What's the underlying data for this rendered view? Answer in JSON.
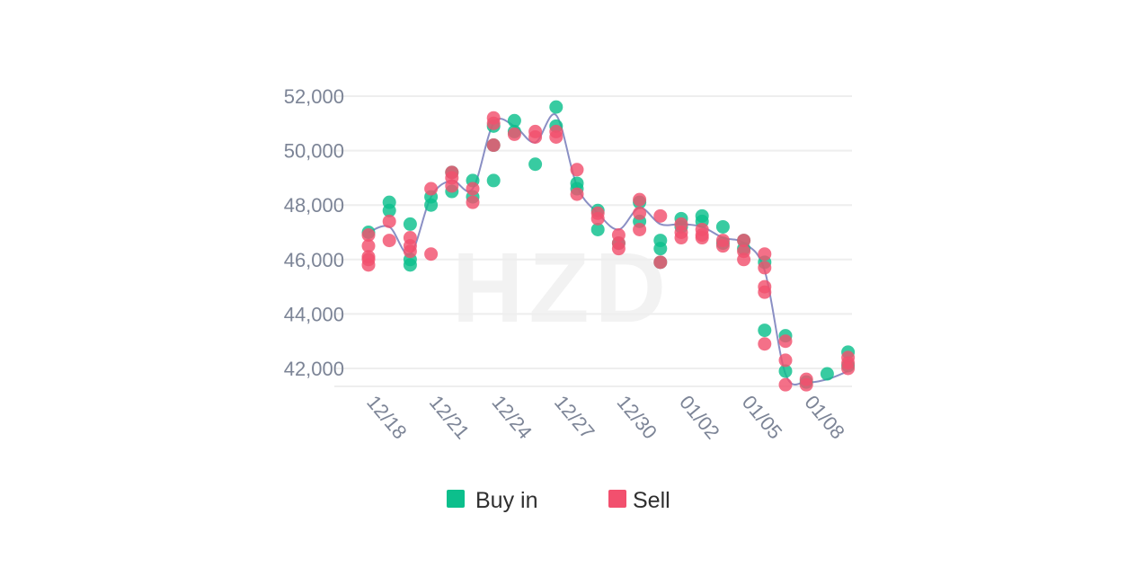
{
  "chart_data": {
    "type": "scatter",
    "title": "",
    "xlabel": "",
    "ylabel": "",
    "x_ticks": [
      "12/18",
      "12/21",
      "12/24",
      "12/27",
      "12/30",
      "01/02",
      "01/05",
      "01/08"
    ],
    "y_ticks": [
      "42,000",
      "44,000",
      "46,000",
      "48,000",
      "50,000",
      "52,000"
    ],
    "y_tick_values": [
      42000,
      44000,
      46000,
      48000,
      50000,
      52000
    ],
    "ylim": [
      41000,
      52000
    ],
    "xlim": [
      "12/18",
      "01/09"
    ],
    "grid": "horizontal",
    "legend_position": "bottom",
    "watermark": "HZD",
    "colors": {
      "buy": "#0cbf8c",
      "sell": "#f2506e",
      "trend": "#8a8fc4",
      "grid": "#eeeeee"
    },
    "series": [
      {
        "name": "Buy in",
        "points": [
          {
            "x": "12/18",
            "y": 47000
          },
          {
            "x": "12/19",
            "y": 48100
          },
          {
            "x": "12/19",
            "y": 47800
          },
          {
            "x": "12/20",
            "y": 47300
          },
          {
            "x": "12/20",
            "y": 46000
          },
          {
            "x": "12/20",
            "y": 45800
          },
          {
            "x": "12/21",
            "y": 48300
          },
          {
            "x": "12/21",
            "y": 48000
          },
          {
            "x": "12/22",
            "y": 49200
          },
          {
            "x": "12/22",
            "y": 48500
          },
          {
            "x": "12/23",
            "y": 48900
          },
          {
            "x": "12/23",
            "y": 48300
          },
          {
            "x": "12/24",
            "y": 50900
          },
          {
            "x": "12/24",
            "y": 50200
          },
          {
            "x": "12/24",
            "y": 48900
          },
          {
            "x": "12/25",
            "y": 51100
          },
          {
            "x": "12/25",
            "y": 50700
          },
          {
            "x": "12/26",
            "y": 49500
          },
          {
            "x": "12/27",
            "y": 51600
          },
          {
            "x": "12/27",
            "y": 50900
          },
          {
            "x": "12/28",
            "y": 48800
          },
          {
            "x": "12/28",
            "y": 48600
          },
          {
            "x": "12/29",
            "y": 47800
          },
          {
            "x": "12/29",
            "y": 47100
          },
          {
            "x": "12/30",
            "y": 46600
          },
          {
            "x": "12/31",
            "y": 47400
          },
          {
            "x": "12/31",
            "y": 48100
          },
          {
            "x": "01/01",
            "y": 46700
          },
          {
            "x": "01/01",
            "y": 46400
          },
          {
            "x": "01/01",
            "y": 45900
          },
          {
            "x": "01/02",
            "y": 47500
          },
          {
            "x": "01/02",
            "y": 47200
          },
          {
            "x": "01/03",
            "y": 47600
          },
          {
            "x": "01/03",
            "y": 47400
          },
          {
            "x": "01/04",
            "y": 47200
          },
          {
            "x": "01/04",
            "y": 46600
          },
          {
            "x": "01/05",
            "y": 46700
          },
          {
            "x": "01/05",
            "y": 46400
          },
          {
            "x": "01/06",
            "y": 45900
          },
          {
            "x": "01/06",
            "y": 43400
          },
          {
            "x": "01/07",
            "y": 43200
          },
          {
            "x": "01/07",
            "y": 41900
          },
          {
            "x": "01/08",
            "y": 41500
          },
          {
            "x": "01/09",
            "y": 41800
          },
          {
            "x": "01/10",
            "y": 42600
          },
          {
            "x": "01/10",
            "y": 42100
          }
        ]
      },
      {
        "name": "Sell",
        "points": [
          {
            "x": "12/18",
            "y": 46900
          },
          {
            "x": "12/18",
            "y": 46500
          },
          {
            "x": "12/18",
            "y": 46100
          },
          {
            "x": "12/18",
            "y": 46000
          },
          {
            "x": "12/18",
            "y": 45800
          },
          {
            "x": "12/19",
            "y": 47400
          },
          {
            "x": "12/19",
            "y": 46700
          },
          {
            "x": "12/20",
            "y": 46800
          },
          {
            "x": "12/20",
            "y": 46500
          },
          {
            "x": "12/20",
            "y": 46300
          },
          {
            "x": "12/21",
            "y": 48600
          },
          {
            "x": "12/21",
            "y": 46200
          },
          {
            "x": "12/22",
            "y": 49200
          },
          {
            "x": "12/22",
            "y": 49000
          },
          {
            "x": "12/22",
            "y": 48700
          },
          {
            "x": "12/23",
            "y": 48600
          },
          {
            "x": "12/23",
            "y": 48100
          },
          {
            "x": "12/24",
            "y": 51200
          },
          {
            "x": "12/24",
            "y": 51000
          },
          {
            "x": "12/24",
            "y": 50200
          },
          {
            "x": "12/25",
            "y": 50600
          },
          {
            "x": "12/26",
            "y": 50700
          },
          {
            "x": "12/26",
            "y": 50500
          },
          {
            "x": "12/27",
            "y": 50700
          },
          {
            "x": "12/27",
            "y": 50500
          },
          {
            "x": "12/28",
            "y": 49300
          },
          {
            "x": "12/28",
            "y": 48400
          },
          {
            "x": "12/29",
            "y": 47700
          },
          {
            "x": "12/29",
            "y": 47500
          },
          {
            "x": "12/30",
            "y": 46900
          },
          {
            "x": "12/30",
            "y": 46600
          },
          {
            "x": "12/30",
            "y": 46400
          },
          {
            "x": "12/31",
            "y": 48200
          },
          {
            "x": "12/31",
            "y": 47700
          },
          {
            "x": "12/31",
            "y": 47100
          },
          {
            "x": "01/01",
            "y": 47600
          },
          {
            "x": "01/01",
            "y": 45900
          },
          {
            "x": "01/02",
            "y": 47300
          },
          {
            "x": "01/02",
            "y": 47000
          },
          {
            "x": "01/02",
            "y": 46800
          },
          {
            "x": "01/03",
            "y": 47100
          },
          {
            "x": "01/03",
            "y": 46900
          },
          {
            "x": "01/03",
            "y": 46800
          },
          {
            "x": "01/04",
            "y": 46700
          },
          {
            "x": "01/04",
            "y": 46500
          },
          {
            "x": "01/05",
            "y": 46700
          },
          {
            "x": "01/05",
            "y": 46300
          },
          {
            "x": "01/05",
            "y": 46000
          },
          {
            "x": "01/06",
            "y": 46200
          },
          {
            "x": "01/06",
            "y": 45700
          },
          {
            "x": "01/06",
            "y": 45000
          },
          {
            "x": "01/06",
            "y": 44800
          },
          {
            "x": "01/06",
            "y": 42900
          },
          {
            "x": "01/07",
            "y": 43000
          },
          {
            "x": "01/07",
            "y": 42300
          },
          {
            "x": "01/07",
            "y": 41400
          },
          {
            "x": "01/08",
            "y": 41600
          },
          {
            "x": "01/08",
            "y": 41400
          },
          {
            "x": "01/10",
            "y": 42400
          },
          {
            "x": "01/10",
            "y": 42200
          },
          {
            "x": "01/10",
            "y": 42000
          }
        ]
      }
    ],
    "trend_line": [
      {
        "x": "12/18",
        "y": 47000
      },
      {
        "x": "12/19",
        "y": 47200
      },
      {
        "x": "12/20",
        "y": 46200
      },
      {
        "x": "12/21",
        "y": 48300
      },
      {
        "x": "12/22",
        "y": 48900
      },
      {
        "x": "12/23",
        "y": 48600
      },
      {
        "x": "12/24",
        "y": 51000
      },
      {
        "x": "12/25",
        "y": 50900
      },
      {
        "x": "12/26",
        "y": 50300
      },
      {
        "x": "12/27",
        "y": 51300
      },
      {
        "x": "12/28",
        "y": 48700
      },
      {
        "x": "12/29",
        "y": 47700
      },
      {
        "x": "12/30",
        "y": 47100
      },
      {
        "x": "12/31",
        "y": 47900
      },
      {
        "x": "01/01",
        "y": 47300
      },
      {
        "x": "01/02",
        "y": 47300
      },
      {
        "x": "01/03",
        "y": 47200
      },
      {
        "x": "01/04",
        "y": 46800
      },
      {
        "x": "01/05",
        "y": 46600
      },
      {
        "x": "01/06",
        "y": 45600
      },
      {
        "x": "01/07",
        "y": 41800
      },
      {
        "x": "01/08",
        "y": 41500
      },
      {
        "x": "01/09",
        "y": 41600
      },
      {
        "x": "01/10",
        "y": 41900
      }
    ]
  }
}
